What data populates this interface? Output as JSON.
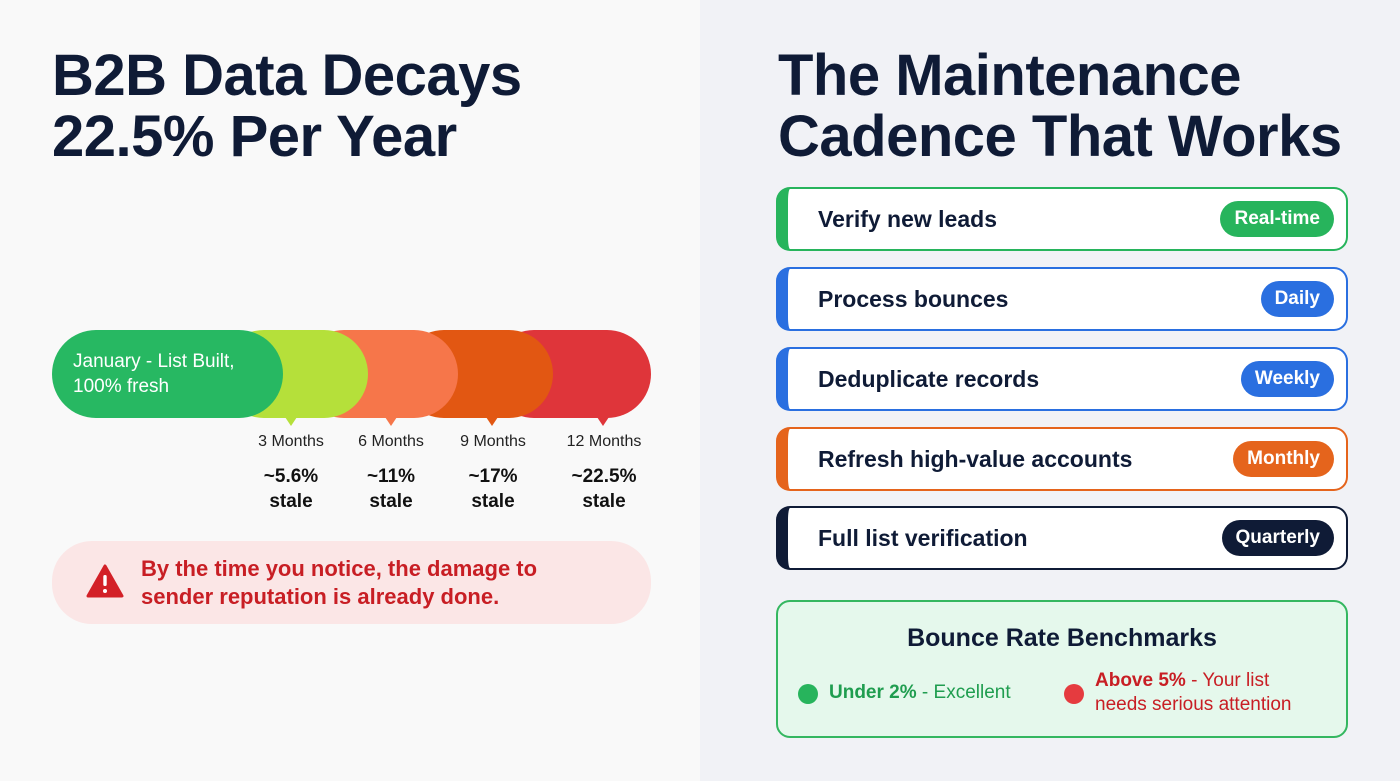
{
  "left": {
    "title_line1": "B2B Data Decays",
    "title_line2": "22.5% Per Year",
    "timeline": {
      "start_label": "January - List Built,\n100% fresh",
      "start_line1": "January - List Built,",
      "start_line2": "100% fresh",
      "start_color": "#27b862",
      "milestones": [
        {
          "month": "3 Months",
          "value": "~5.6%",
          "unit": "stale",
          "color": "#b5e03a"
        },
        {
          "month": "6 Months",
          "value": "~11%",
          "unit": "stale",
          "color": "#f6764a"
        },
        {
          "month": "9 Months",
          "value": "~17%",
          "unit": "stale",
          "color": "#e25712"
        },
        {
          "month": "12 Months",
          "value": "~22.5%",
          "unit": "stale",
          "color": "#df353a"
        }
      ]
    },
    "alert": {
      "icon": "warning-triangle-icon",
      "line1": "By the time you notice, the damage to",
      "line2": "sender reputation is already done.",
      "color": "#c81e24"
    }
  },
  "right": {
    "title_line1": "The Maintenance",
    "title_line2": "Cadence That Works",
    "cadence": [
      {
        "task": "Verify new leads",
        "frequency": "Real-time",
        "color": "#27b45c"
      },
      {
        "task": "Process bounces",
        "frequency": "Daily",
        "color": "#2a6fe0"
      },
      {
        "task": "Deduplicate records",
        "frequency": "Weekly",
        "color": "#2a6fe0"
      },
      {
        "task": "Refresh high-value accounts",
        "frequency": "Monthly",
        "color": "#e5641c"
      },
      {
        "task": "Full list verification",
        "frequency": "Quarterly",
        "color": "#0f1b36"
      }
    ],
    "benchmarks": {
      "title": "Bounce Rate Benchmarks",
      "good_bold": "Under 2%",
      "good_rest": " - Excellent",
      "good_color": "#1f9d4f",
      "bad_bold": "Above 5%",
      "bad_rest_line1": " - Your list",
      "bad_rest_line2": "needs serious attention",
      "bad_color": "#c81e24"
    }
  }
}
